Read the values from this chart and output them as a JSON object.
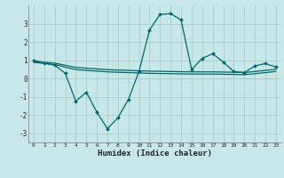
{
  "xlabel": "Humidex (Indice chaleur)",
  "background_color": "#c8e8e8",
  "grid_color": "#a8cece",
  "line_color": "#006868",
  "x_data": [
    0,
    1,
    2,
    3,
    4,
    5,
    6,
    7,
    8,
    9,
    10,
    11,
    12,
    13,
    14,
    15,
    16,
    17,
    18,
    19,
    20,
    21,
    22,
    23
  ],
  "y_main": [
    1.0,
    0.85,
    0.72,
    0.28,
    -1.25,
    -0.75,
    -1.85,
    -2.75,
    -2.15,
    -1.15,
    0.38,
    2.65,
    3.5,
    3.55,
    3.2,
    0.48,
    1.1,
    1.35,
    0.9,
    0.38,
    0.32,
    0.68,
    0.82,
    0.62
  ],
  "y_trend1": [
    0.92,
    0.88,
    0.84,
    0.72,
    0.6,
    0.56,
    0.52,
    0.48,
    0.46,
    0.44,
    0.42,
    0.4,
    0.39,
    0.38,
    0.37,
    0.36,
    0.36,
    0.36,
    0.35,
    0.34,
    0.33,
    0.38,
    0.44,
    0.5
  ],
  "y_trend2": [
    0.88,
    0.82,
    0.76,
    0.62,
    0.48,
    0.44,
    0.4,
    0.36,
    0.34,
    0.32,
    0.3,
    0.28,
    0.27,
    0.26,
    0.25,
    0.24,
    0.24,
    0.24,
    0.23,
    0.22,
    0.21,
    0.26,
    0.32,
    0.38
  ],
  "ylim": [
    -3.5,
    4.0
  ],
  "xlim": [
    -0.5,
    23.5
  ],
  "yticks": [
    -3,
    -2,
    -1,
    0,
    1,
    2,
    3
  ],
  "xticks": [
    0,
    1,
    2,
    3,
    4,
    5,
    6,
    7,
    8,
    9,
    10,
    11,
    12,
    13,
    14,
    15,
    16,
    17,
    18,
    19,
    20,
    21,
    22,
    23
  ]
}
